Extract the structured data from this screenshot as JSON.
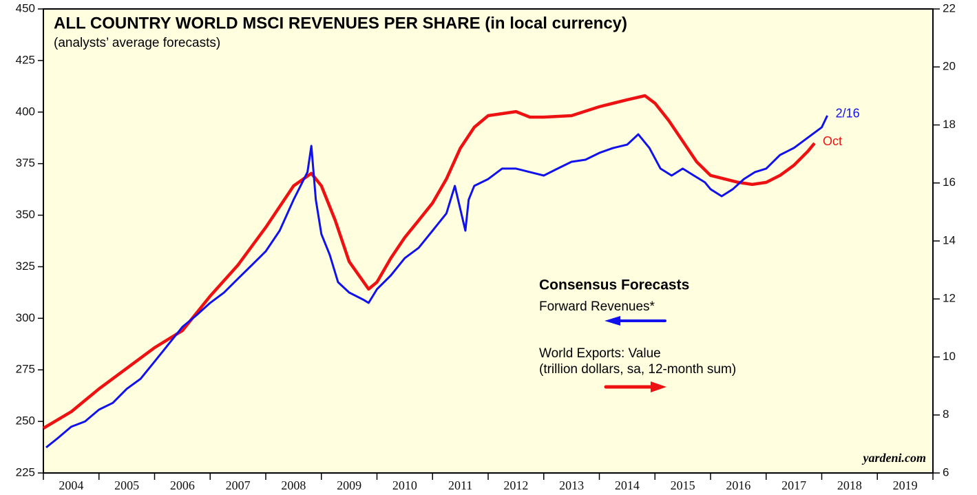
{
  "chart_data": {
    "type": "line",
    "title": "ALL COUNTRY WORLD MSCI REVENUES PER SHARE (in local currency)",
    "subtitle": "(analysts’ average forecasts)",
    "legend_title": "Consensus Forecasts",
    "source": "yardeni.com",
    "xlim": [
      2004,
      2020
    ],
    "xticks": [
      2004,
      2005,
      2006,
      2007,
      2008,
      2009,
      2010,
      2011,
      2012,
      2013,
      2014,
      2015,
      2016,
      2017,
      2018,
      2019,
      2020
    ],
    "x_labels": [
      "2004",
      "2005",
      "2006",
      "2007",
      "2008",
      "2009",
      "2010",
      "2011",
      "2012",
      "2013",
      "2014",
      "2015",
      "2016",
      "2017",
      "2018",
      "2019"
    ],
    "ylim": [
      225,
      450
    ],
    "yticks": [
      225,
      250,
      275,
      300,
      325,
      350,
      375,
      400,
      425,
      450
    ],
    "y2lim": [
      6,
      22
    ],
    "y2ticks": [
      6,
      8,
      10,
      12,
      14,
      16,
      18,
      20,
      22
    ],
    "series": [
      {
        "name": "World Exports: Value",
        "subtitle": "(trillion dollars, sa, 12-month sum)",
        "end_label": "Oct",
        "color": "#ee1111",
        "axis": "y2",
        "x": [
          2004.0,
          2004.5,
          2005.0,
          2005.5,
          2006.0,
          2006.5,
          2007.0,
          2007.5,
          2008.0,
          2008.5,
          2008.82,
          2009.0,
          2009.25,
          2009.5,
          2009.85,
          2010.0,
          2010.25,
          2010.5,
          2010.75,
          2011.0,
          2011.25,
          2011.5,
          2011.75,
          2012.0,
          2012.5,
          2012.75,
          2013.0,
          2013.5,
          2014.0,
          2014.5,
          2014.82,
          2015.0,
          2015.25,
          2015.5,
          2015.75,
          2016.0,
          2016.5,
          2016.75,
          2017.0,
          2017.25,
          2017.5,
          2017.75,
          2017.87
        ],
        "values": [
          7.54,
          8.11,
          8.9,
          9.61,
          10.32,
          10.91,
          12.1,
          13.17,
          14.47,
          15.9,
          16.33,
          15.9,
          14.71,
          13.29,
          12.34,
          12.58,
          13.41,
          14.12,
          14.71,
          15.31,
          16.14,
          17.2,
          17.92,
          18.32,
          18.46,
          18.27,
          18.27,
          18.32,
          18.63,
          18.87,
          19.01,
          18.75,
          18.15,
          17.44,
          16.73,
          16.26,
          16.02,
          15.95,
          16.02,
          16.26,
          16.61,
          17.09,
          17.37
        ]
      },
      {
        "name": "Forward Revenues*",
        "end_label": "2/16",
        "color": "#1111ee",
        "x": [
          2004.05,
          2004.25,
          2004.5,
          2004.75,
          2005.0,
          2005.25,
          2005.5,
          2005.75,
          2006.0,
          2006.25,
          2006.5,
          2006.75,
          2007.0,
          2007.25,
          2007.5,
          2007.75,
          2008.0,
          2008.25,
          2008.5,
          2008.75,
          2008.82,
          2008.9,
          2009.0,
          2009.15,
          2009.3,
          2009.5,
          2009.75,
          2009.85,
          2010.0,
          2010.25,
          2010.5,
          2010.75,
          2011.0,
          2011.25,
          2011.4,
          2011.59,
          2011.65,
          2011.75,
          2012.0,
          2012.25,
          2012.5,
          2012.75,
          2013.0,
          2013.25,
          2013.5,
          2013.75,
          2014.0,
          2014.25,
          2014.5,
          2014.7,
          2014.9,
          2015.1,
          2015.3,
          2015.5,
          2015.7,
          2015.9,
          2016.0,
          2016.2,
          2016.4,
          2016.6,
          2016.8,
          2017.0,
          2017.25,
          2017.5,
          2017.75,
          2018.0,
          2018.1
        ],
        "values": [
          237.4,
          241.7,
          247.4,
          250,
          255.7,
          259,
          265.8,
          270.7,
          279,
          287.4,
          295.8,
          301.4,
          307.5,
          312.5,
          319.2,
          325.8,
          332.5,
          342.5,
          357.5,
          370.9,
          383.6,
          357.5,
          340.8,
          330.8,
          317.5,
          312.5,
          309.1,
          307.5,
          314.1,
          320.8,
          329.2,
          334.2,
          342.5,
          350.9,
          364.2,
          342.5,
          357.5,
          364.2,
          367.5,
          372.6,
          372.6,
          370.9,
          369.2,
          372.6,
          375.9,
          376.9,
          380.2,
          382.6,
          384.2,
          389.2,
          382.6,
          372.6,
          369.2,
          372.6,
          369.2,
          365.9,
          362.6,
          359.2,
          362.6,
          367.5,
          370.9,
          372.6,
          379.2,
          382.6,
          387.6,
          392.6,
          398.3
        ]
      }
    ]
  }
}
